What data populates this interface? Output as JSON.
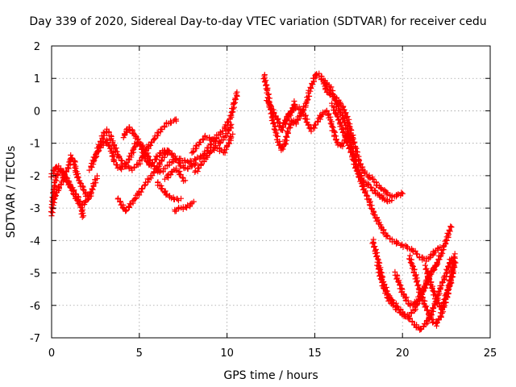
{
  "chart_data": {
    "type": "scatter",
    "title": "Day 339 of 2020, Sidereal Day-to-day VTEC variation (SDTVAR) for receiver cedu",
    "xlabel": "GPS time / hours",
    "ylabel": "SDTVAR / TECUs",
    "xlim": [
      0,
      25
    ],
    "ylim": [
      -7,
      2
    ],
    "xticks": [
      0,
      5,
      10,
      15,
      20,
      25
    ],
    "yticks": [
      -7,
      -6,
      -5,
      -4,
      -3,
      -2,
      -1,
      0,
      1,
      2
    ],
    "grid": true,
    "marker": "+",
    "color": "#ff0000",
    "series": [
      {
        "values": [
          [
            0.0,
            -3.2
          ],
          [
            0.1,
            -2.6
          ],
          [
            0.2,
            -2.2
          ],
          [
            0.3,
            -2.0
          ],
          [
            0.5,
            -1.8
          ],
          [
            0.8,
            -2.0
          ],
          [
            1.2,
            -2.5
          ],
          [
            1.5,
            -2.8
          ],
          [
            1.8,
            -2.9
          ],
          [
            2.2,
            -2.6
          ],
          [
            2.4,
            -2.3
          ],
          [
            2.6,
            -2.0
          ]
        ]
      },
      {
        "values": [
          [
            0.0,
            -2.0
          ],
          [
            0.3,
            -1.7
          ],
          [
            0.6,
            -1.9
          ],
          [
            0.9,
            -2.2
          ],
          [
            1.2,
            -2.4
          ],
          [
            1.5,
            -2.7
          ],
          [
            1.7,
            -3.0
          ],
          [
            1.8,
            -3.3
          ]
        ]
      },
      {
        "values": [
          [
            0.1,
            -2.8
          ],
          [
            0.3,
            -2.5
          ],
          [
            0.6,
            -2.2
          ],
          [
            0.8,
            -1.9
          ],
          [
            1.0,
            -1.7
          ],
          [
            1.1,
            -1.4
          ],
          [
            1.3,
            -1.6
          ],
          [
            1.4,
            -1.9
          ],
          [
            1.6,
            -2.2
          ],
          [
            1.8,
            -2.4
          ],
          [
            2.0,
            -2.6
          ],
          [
            2.2,
            -2.7
          ]
        ]
      },
      {
        "values": [
          [
            2.2,
            -1.8
          ],
          [
            2.5,
            -1.4
          ],
          [
            2.7,
            -1.1
          ],
          [
            2.9,
            -0.8
          ],
          [
            3.1,
            -0.6
          ],
          [
            3.3,
            -0.7
          ],
          [
            3.5,
            -1.0
          ],
          [
            3.8,
            -1.4
          ],
          [
            4.2,
            -1.7
          ],
          [
            4.6,
            -1.8
          ],
          [
            5.0,
            -1.6
          ],
          [
            5.4,
            -1.2
          ],
          [
            5.8,
            -0.9
          ],
          [
            6.2,
            -0.6
          ],
          [
            6.6,
            -0.4
          ],
          [
            7.0,
            -0.3
          ],
          [
            7.2,
            -0.25
          ]
        ]
      },
      {
        "values": [
          [
            2.4,
            -1.5
          ],
          [
            2.8,
            -1.1
          ],
          [
            3.1,
            -0.9
          ],
          [
            3.4,
            -1.2
          ],
          [
            3.6,
            -1.6
          ],
          [
            3.9,
            -1.8
          ],
          [
            4.3,
            -1.6
          ],
          [
            4.6,
            -1.3
          ],
          [
            4.8,
            -1.0
          ],
          [
            5.1,
            -1.0
          ],
          [
            5.4,
            -1.3
          ],
          [
            5.8,
            -1.7
          ],
          [
            6.2,
            -1.9
          ],
          [
            6.6,
            -1.7
          ],
          [
            7.0,
            -1.5
          ],
          [
            7.4,
            -1.5
          ],
          [
            7.8,
            -1.6
          ],
          [
            8.2,
            -1.5
          ],
          [
            8.6,
            -1.4
          ],
          [
            9.0,
            -1.1
          ],
          [
            9.4,
            -0.8
          ],
          [
            9.8,
            -0.6
          ],
          [
            10.2,
            -0.2
          ],
          [
            10.4,
            0.2
          ],
          [
            10.6,
            0.6
          ]
        ]
      },
      {
        "values": [
          [
            4.1,
            -0.8
          ],
          [
            4.4,
            -0.5
          ],
          [
            4.7,
            -0.7
          ],
          [
            5.0,
            -1.0
          ],
          [
            5.3,
            -1.4
          ],
          [
            5.6,
            -1.7
          ],
          [
            5.9,
            -1.5
          ],
          [
            6.2,
            -1.3
          ],
          [
            6.5,
            -1.2
          ],
          [
            6.8,
            -1.3
          ],
          [
            7.1,
            -1.5
          ],
          [
            7.4,
            -1.7
          ],
          [
            7.7,
            -1.8
          ],
          [
            8.0,
            -1.7
          ],
          [
            8.3,
            -1.6
          ]
        ]
      },
      {
        "values": [
          [
            3.8,
            -2.7
          ],
          [
            4.0,
            -2.9
          ],
          [
            4.2,
            -3.1
          ],
          [
            4.5,
            -2.9
          ],
          [
            4.9,
            -2.6
          ],
          [
            5.3,
            -2.3
          ],
          [
            5.7,
            -2.0
          ],
          [
            6.1,
            -1.7
          ],
          [
            6.4,
            -1.4
          ],
          [
            6.7,
            -1.2
          ]
        ]
      },
      {
        "values": [
          [
            6.0,
            -2.2
          ],
          [
            6.3,
            -2.4
          ],
          [
            6.6,
            -2.6
          ],
          [
            6.9,
            -2.7
          ],
          [
            7.2,
            -2.75
          ],
          [
            7.4,
            -2.7
          ]
        ]
      },
      {
        "values": [
          [
            6.5,
            -2.1
          ],
          [
            6.8,
            -1.9
          ],
          [
            7.1,
            -1.8
          ],
          [
            7.4,
            -2.0
          ],
          [
            7.6,
            -2.2
          ]
        ]
      },
      {
        "values": [
          [
            7.0,
            -3.1
          ],
          [
            7.3,
            -3.0
          ],
          [
            7.6,
            -3.0
          ],
          [
            7.9,
            -2.9
          ],
          [
            8.1,
            -2.8
          ]
        ]
      },
      {
        "values": [
          [
            8.0,
            -1.3
          ],
          [
            8.4,
            -1.0
          ],
          [
            8.8,
            -0.8
          ],
          [
            9.2,
            -0.9
          ],
          [
            9.6,
            -1.0
          ],
          [
            10.0,
            -0.7
          ],
          [
            10.3,
            -0.4
          ]
        ]
      },
      {
        "values": [
          [
            8.2,
            -1.9
          ],
          [
            8.6,
            -1.6
          ],
          [
            9.0,
            -1.3
          ],
          [
            9.4,
            -1.1
          ],
          [
            9.8,
            -1.3
          ],
          [
            10.1,
            -1.0
          ],
          [
            10.3,
            -0.7
          ]
        ]
      },
      {
        "values": [
          [
            12.1,
            1.1
          ],
          [
            12.3,
            0.6
          ],
          [
            12.5,
            0.0
          ],
          [
            12.7,
            -0.5
          ],
          [
            12.9,
            -0.9
          ],
          [
            13.1,
            -1.2
          ],
          [
            13.3,
            -1.0
          ],
          [
            13.5,
            -0.6
          ],
          [
            13.7,
            -0.3
          ],
          [
            13.9,
            -0.4
          ],
          [
            14.1,
            -0.2
          ],
          [
            14.3,
            0.0
          ],
          [
            14.5,
            0.2
          ],
          [
            14.7,
            0.6
          ],
          [
            14.9,
            0.9
          ],
          [
            15.1,
            1.15
          ],
          [
            15.3,
            1.1
          ],
          [
            15.5,
            0.9
          ],
          [
            15.7,
            0.6
          ],
          [
            15.9,
            0.5
          ],
          [
            16.2,
            0.4
          ],
          [
            16.5,
            0.2
          ],
          [
            16.7,
            0.0
          ],
          [
            16.9,
            -0.3
          ],
          [
            17.1,
            -0.7
          ],
          [
            17.3,
            -1.1
          ],
          [
            17.5,
            -1.5
          ],
          [
            17.7,
            -1.8
          ],
          [
            18.0,
            -2.0
          ],
          [
            18.3,
            -2.1
          ],
          [
            18.6,
            -2.3
          ],
          [
            19.0,
            -2.5
          ],
          [
            19.4,
            -2.65
          ],
          [
            19.8,
            -2.6
          ],
          [
            20.1,
            -2.5
          ]
        ]
      },
      {
        "values": [
          [
            12.3,
            0.3
          ],
          [
            12.6,
            0.0
          ],
          [
            12.9,
            -0.3
          ],
          [
            13.1,
            -0.6
          ],
          [
            13.3,
            -0.4
          ],
          [
            13.5,
            -0.1
          ],
          [
            13.7,
            0.0
          ],
          [
            13.9,
            0.3
          ]
        ]
      },
      {
        "values": [
          [
            13.2,
            -0.4
          ],
          [
            13.5,
            -0.2
          ],
          [
            13.8,
            0.1
          ],
          [
            14.1,
            0.1
          ],
          [
            14.4,
            -0.1
          ],
          [
            14.6,
            -0.4
          ],
          [
            14.8,
            -0.6
          ],
          [
            15.1,
            -0.4
          ],
          [
            15.4,
            -0.1
          ],
          [
            15.7,
            0.0
          ],
          [
            15.9,
            -0.3
          ],
          [
            16.1,
            -0.7
          ],
          [
            16.3,
            -1.0
          ],
          [
            16.5,
            -1.1
          ],
          [
            16.7,
            -0.9
          ],
          [
            16.9,
            -0.7
          ],
          [
            17.1,
            -0.9
          ]
        ]
      },
      {
        "values": [
          [
            15.6,
            0.9
          ],
          [
            15.9,
            0.7
          ],
          [
            16.2,
            0.3
          ],
          [
            16.4,
            0.0
          ],
          [
            16.6,
            -0.2
          ],
          [
            16.8,
            -0.5
          ],
          [
            17.0,
            -0.9
          ],
          [
            17.2,
            -1.3
          ],
          [
            17.4,
            -1.7
          ],
          [
            17.6,
            -2.0
          ],
          [
            17.8,
            -2.2
          ],
          [
            18.1,
            -2.3
          ],
          [
            18.4,
            -2.5
          ],
          [
            18.7,
            -2.6
          ],
          [
            19.0,
            -2.75
          ],
          [
            19.4,
            -2.8
          ]
        ]
      },
      {
        "values": [
          [
            16.0,
            0.2
          ],
          [
            16.3,
            -0.2
          ],
          [
            16.6,
            -0.6
          ],
          [
            16.9,
            -1.0
          ],
          [
            17.2,
            -1.5
          ],
          [
            17.5,
            -2.0
          ],
          [
            17.8,
            -2.4
          ],
          [
            18.1,
            -2.8
          ],
          [
            18.4,
            -3.2
          ],
          [
            18.7,
            -3.5
          ],
          [
            19.0,
            -3.8
          ],
          [
            19.4,
            -4.0
          ],
          [
            19.8,
            -4.1
          ],
          [
            20.2,
            -4.2
          ],
          [
            20.6,
            -4.3
          ],
          [
            21.0,
            -4.5
          ],
          [
            21.3,
            -4.6
          ],
          [
            21.6,
            -4.5
          ],
          [
            21.9,
            -4.3
          ],
          [
            22.2,
            -4.2
          ]
        ]
      },
      {
        "values": [
          [
            18.3,
            -4.0
          ],
          [
            18.6,
            -4.6
          ],
          [
            18.9,
            -5.3
          ],
          [
            19.2,
            -5.7
          ],
          [
            19.5,
            -5.9
          ],
          [
            19.8,
            -6.1
          ],
          [
            20.1,
            -6.3
          ],
          [
            20.4,
            -6.4
          ],
          [
            20.7,
            -6.6
          ],
          [
            21.0,
            -6.75
          ],
          [
            21.3,
            -6.6
          ],
          [
            21.6,
            -6.3
          ],
          [
            21.9,
            -5.9
          ],
          [
            22.2,
            -5.4
          ],
          [
            22.5,
            -5.0
          ],
          [
            22.8,
            -4.5
          ]
        ]
      },
      {
        "values": [
          [
            18.6,
            -4.8
          ],
          [
            18.9,
            -5.4
          ],
          [
            19.2,
            -5.8
          ],
          [
            19.5,
            -6.0
          ],
          [
            19.8,
            -6.2
          ],
          [
            20.1,
            -6.3
          ],
          [
            20.4,
            -6.3
          ],
          [
            20.7,
            -6.1
          ],
          [
            21.0,
            -5.8
          ],
          [
            21.3,
            -5.4
          ],
          [
            21.6,
            -5.0
          ],
          [
            21.9,
            -4.8
          ],
          [
            22.2,
            -4.4
          ],
          [
            22.5,
            -4.0
          ],
          [
            22.8,
            -3.5
          ]
        ]
      },
      {
        "values": [
          [
            20.4,
            -4.5
          ],
          [
            20.7,
            -5.0
          ],
          [
            21.0,
            -5.6
          ],
          [
            21.3,
            -6.0
          ],
          [
            21.6,
            -6.4
          ],
          [
            21.9,
            -6.6
          ],
          [
            22.2,
            -6.3
          ],
          [
            22.5,
            -5.8
          ],
          [
            22.8,
            -5.0
          ],
          [
            23.0,
            -4.4
          ]
        ]
      },
      {
        "values": [
          [
            21.3,
            -4.8
          ],
          [
            21.6,
            -5.3
          ],
          [
            21.9,
            -5.8
          ],
          [
            22.2,
            -6.1
          ],
          [
            22.5,
            -5.7
          ],
          [
            22.8,
            -5.2
          ],
          [
            23.0,
            -4.6
          ]
        ]
      },
      {
        "values": [
          [
            19.6,
            -5.0
          ],
          [
            20.0,
            -5.6
          ],
          [
            20.4,
            -6.0
          ],
          [
            20.8,
            -5.9
          ],
          [
            21.2,
            -5.5
          ],
          [
            21.6,
            -5.0
          ],
          [
            22.0,
            -4.7
          ]
        ]
      }
    ]
  }
}
